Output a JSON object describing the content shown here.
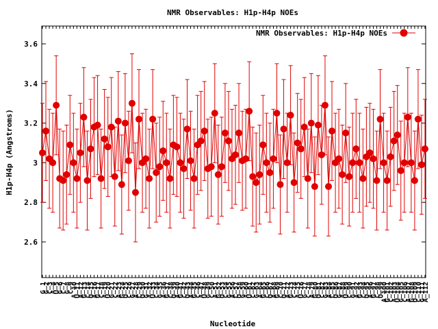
{
  "colors": {
    "series": "#e00000",
    "axis": "#000000",
    "background": "#ffffff"
  },
  "chart_data": {
    "type": "line",
    "title": "NMR Observables: H1p-H4p NOEs",
    "xlabel": "Nucleotide",
    "ylabel": "H1p-H4p (Angstroms)",
    "ylim": [
      2.42,
      3.69
    ],
    "yticks": [
      2.6,
      2.8,
      3.0,
      3.2,
      3.4,
      3.6
    ],
    "ytick_labels": [
      "2.6",
      "2.8",
      "3",
      "3.2",
      "3.4",
      "3.6"
    ],
    "grid": false,
    "legend": "top-right",
    "error_bar_half_width": 0.25,
    "x_tick_labels": [
      "G_1",
      "G_2",
      "C_3",
      "A_4",
      "U_5",
      "G_6",
      "C_7",
      "G_8",
      "C_9",
      "A_10",
      "U_11",
      "A_12",
      "G_13",
      "C_14",
      "U_15",
      "A_16",
      "G_17",
      "C_18",
      "A_19",
      "U_20",
      "G_21",
      "C_22",
      "A_23",
      "G_24",
      "U_25",
      "C_26",
      "G_27",
      "A_28",
      "C_29",
      "U_30",
      "G_31",
      "A_32",
      "U_33",
      "C_34",
      "G_35",
      "A_36",
      "G_37",
      "C_38",
      "U_39",
      "A_40",
      "G_41",
      "C_42",
      "U_43",
      "A_44",
      "G_45",
      "C_46",
      "A_47",
      "U_48",
      "G_49",
      "C_50",
      "A_51",
      "G_52",
      "U_53",
      "C_54",
      "G_55",
      "A_56",
      "C_57",
      "U_58",
      "G_59",
      "A_60",
      "U_61",
      "C_62",
      "G_63",
      "A_64",
      "G_65",
      "C_66",
      "U_67",
      "A_68",
      "G_69",
      "C_70",
      "U_71",
      "A_72",
      "G_73",
      "C_74",
      "A_75",
      "U_76",
      "G_77",
      "C_78",
      "A_79",
      "G_80",
      "U_81",
      "C_82",
      "G_83",
      "A_84",
      "C_85",
      "U_86",
      "G_87",
      "A_88",
      "U_89",
      "C_90",
      "G_91",
      "A_92",
      "G_93",
      "C_94",
      "U_95",
      "A_96",
      "G_97",
      "C_98",
      "U_99",
      "A_100",
      "G_101",
      "C_102",
      "A_103",
      "U_104",
      "G_105",
      "C_106",
      "A_107",
      "G_108",
      "U_109",
      "C_110",
      "G_111",
      "A_112"
    ],
    "series": [
      {
        "name": "NMR Observables: H1p-H4p NOEs",
        "y": [
          3.05,
          3.16,
          3.02,
          3.0,
          3.29,
          2.92,
          2.91,
          2.94,
          3.09,
          3.0,
          2.92,
          3.05,
          3.23,
          2.91,
          3.07,
          3.18,
          3.19,
          2.92,
          3.12,
          3.08,
          3.18,
          2.93,
          3.21,
          2.89,
          3.2,
          3.01,
          3.3,
          2.85,
          3.22,
          3.0,
          3.02,
          2.92,
          3.22,
          2.95,
          2.98,
          3.06,
          3.0,
          2.92,
          3.09,
          3.08,
          3.0,
          2.97,
          3.17,
          3.01,
          2.92,
          3.09,
          3.11,
          3.16,
          2.97,
          2.98,
          3.25,
          2.94,
          2.98,
          3.15,
          3.11,
          3.02,
          3.04,
          3.15,
          3.01,
          3.02,
          3.26,
          2.93,
          2.9,
          2.94,
          3.09,
          3.0,
          2.95,
          3.02,
          3.25,
          2.89,
          3.17,
          3.0,
          3.24,
          2.9,
          3.1,
          3.07,
          3.18,
          2.92,
          3.2,
          2.88,
          3.19,
          3.04,
          3.29,
          2.88,
          3.16,
          3.0,
          3.02,
          2.94,
          3.15,
          2.93,
          3.0,
          3.07,
          3.0,
          2.92,
          3.03,
          3.05,
          3.02,
          2.91,
          3.22,
          3.0,
          2.91,
          3.03,
          3.11,
          3.14,
          2.96,
          3.0,
          3.23,
          3.0,
          2.91,
          3.22,
          2.99,
          3.07
        ]
      }
    ]
  }
}
